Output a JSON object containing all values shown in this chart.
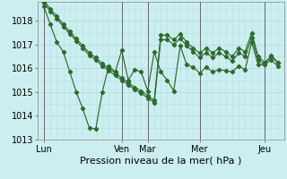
{
  "background_color": "#cceef0",
  "grid_color": "#b8dfe0",
  "line_color": "#2d6a2d",
  "xlabel": "Pression niveau de la mer( hPa )",
  "xlabel_fontsize": 8,
  "tick_fontsize": 7,
  "ylim": [
    1013.0,
    1018.8
  ],
  "yticks": [
    1013,
    1014,
    1015,
    1016,
    1017,
    1018
  ],
  "day_labels": [
    "Lun",
    "Ven",
    "Mar",
    "Mer",
    "Jeu"
  ],
  "day_positions": [
    0,
    12,
    16,
    24,
    34
  ],
  "xlim": [
    -1,
    37
  ],
  "series1_x": [
    0,
    1,
    2,
    3,
    4,
    5,
    6,
    7,
    8,
    9,
    10,
    11,
    12,
    13,
    14,
    15,
    16,
    17,
    18,
    19,
    20,
    21,
    22,
    23,
    24,
    25,
    26,
    27,
    28,
    29,
    30,
    31,
    32,
    33,
    34,
    35,
    36
  ],
  "series1_y": [
    1018.6,
    1017.85,
    1017.1,
    1016.7,
    1015.85,
    1015.0,
    1014.3,
    1013.5,
    1013.45,
    1015.0,
    1016.1,
    1015.85,
    1016.75,
    1015.5,
    1015.95,
    1015.85,
    1015.05,
    1016.7,
    1015.85,
    1015.5,
    1015.05,
    1016.95,
    1016.15,
    1016.05,
    1015.8,
    1016.05,
    1015.85,
    1015.95,
    1015.9,
    1015.85,
    1016.1,
    1015.95,
    1017.1,
    1016.15,
    1016.15,
    1016.55,
    1016.25
  ],
  "series2_x": [
    0,
    1,
    2,
    3,
    4,
    5,
    6,
    7,
    8,
    9,
    10,
    11,
    12,
    13,
    14,
    15,
    16,
    17,
    18,
    19,
    20,
    21,
    22,
    23,
    24,
    25,
    26,
    27,
    28,
    29,
    30,
    31,
    32,
    33,
    34,
    35,
    36
  ],
  "series2_y": [
    1018.85,
    1018.5,
    1018.2,
    1017.85,
    1017.55,
    1017.25,
    1016.95,
    1016.65,
    1016.45,
    1016.2,
    1016.0,
    1015.8,
    1015.6,
    1015.4,
    1015.2,
    1015.05,
    1014.85,
    1014.65,
    1017.4,
    1017.4,
    1017.2,
    1017.45,
    1017.1,
    1016.85,
    1016.65,
    1016.85,
    1016.65,
    1016.85,
    1016.7,
    1016.5,
    1016.85,
    1016.7,
    1017.5,
    1016.5,
    1016.25,
    1016.5,
    1016.25
  ],
  "series3_x": [
    0,
    1,
    2,
    3,
    4,
    5,
    6,
    7,
    8,
    9,
    10,
    11,
    12,
    13,
    14,
    15,
    16,
    17,
    18,
    19,
    20,
    21,
    22,
    23,
    24,
    25,
    26,
    27,
    28,
    29,
    30,
    31,
    32,
    33,
    34,
    35,
    36
  ],
  "series3_y": [
    1018.75,
    1018.4,
    1018.1,
    1017.75,
    1017.45,
    1017.15,
    1016.85,
    1016.55,
    1016.35,
    1016.1,
    1015.9,
    1015.7,
    1015.5,
    1015.3,
    1015.1,
    1014.95,
    1014.75,
    1014.55,
    1017.2,
    1017.2,
    1017.0,
    1017.25,
    1016.95,
    1016.7,
    1016.45,
    1016.65,
    1016.45,
    1016.65,
    1016.5,
    1016.3,
    1016.65,
    1016.5,
    1017.3,
    1016.35,
    1016.15,
    1016.35,
    1016.1
  ]
}
